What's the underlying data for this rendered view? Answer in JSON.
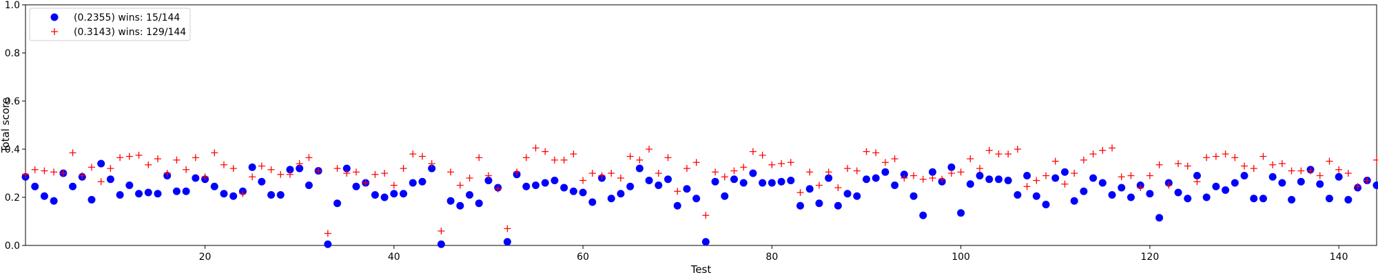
{
  "chart_data": {
    "type": "scatter",
    "title": "",
    "xlabel": "Test",
    "ylabel": "Total score",
    "xlim": [
      1,
      144
    ],
    "ylim": [
      0,
      1
    ],
    "x_ticks": [
      20,
      40,
      60,
      80,
      100,
      120,
      140
    ],
    "y_ticks": [
      0.0,
      0.2,
      0.4,
      0.6,
      0.8,
      1.0
    ],
    "x_tick_labels": [
      "20",
      "40",
      "60",
      "80",
      "100",
      "120",
      "140"
    ],
    "y_tick_labels": [
      "0.0",
      "0.2",
      "0.4",
      "0.6",
      "0.8",
      "1.0"
    ],
    "grid": false,
    "legend_position": "top-left",
    "series": [
      {
        "name": "(0.2355) wins: 15/144",
        "marker": "circle",
        "color": "#0000ff",
        "x": [
          1,
          2,
          3,
          4,
          5,
          6,
          7,
          8,
          9,
          10,
          11,
          12,
          13,
          14,
          15,
          16,
          17,
          18,
          19,
          20,
          21,
          22,
          23,
          24,
          25,
          26,
          27,
          28,
          29,
          30,
          31,
          32,
          33,
          34,
          35,
          36,
          37,
          38,
          39,
          40,
          41,
          42,
          43,
          44,
          45,
          46,
          47,
          48,
          49,
          50,
          51,
          52,
          53,
          54,
          55,
          56,
          57,
          58,
          59,
          60,
          61,
          62,
          63,
          64,
          65,
          66,
          67,
          68,
          69,
          70,
          71,
          72,
          73,
          74,
          75,
          76,
          77,
          78,
          79,
          80,
          81,
          82,
          83,
          84,
          85,
          86,
          87,
          88,
          89,
          90,
          91,
          92,
          93,
          94,
          95,
          96,
          97,
          98,
          99,
          100,
          101,
          102,
          103,
          104,
          105,
          106,
          107,
          108,
          109,
          110,
          111,
          112,
          113,
          114,
          115,
          116,
          117,
          118,
          119,
          120,
          121,
          122,
          123,
          124,
          125,
          126,
          127,
          128,
          129,
          130,
          131,
          132,
          133,
          134,
          135,
          136,
          137,
          138,
          139,
          140,
          141,
          142,
          143,
          144
        ],
        "y": [
          0.285,
          0.245,
          0.205,
          0.185,
          0.3,
          0.245,
          0.285,
          0.19,
          0.34,
          0.275,
          0.21,
          0.25,
          0.215,
          0.22,
          0.215,
          0.29,
          0.225,
          0.225,
          0.28,
          0.275,
          0.245,
          0.215,
          0.205,
          0.225,
          0.325,
          0.265,
          0.21,
          0.21,
          0.315,
          0.32,
          0.25,
          0.31,
          0.005,
          0.175,
          0.32,
          0.245,
          0.26,
          0.21,
          0.2,
          0.215,
          0.215,
          0.26,
          0.265,
          0.32,
          0.005,
          0.185,
          0.165,
          0.21,
          0.175,
          0.27,
          0.24,
          0.015,
          0.295,
          0.245,
          0.25,
          0.26,
          0.27,
          0.24,
          0.225,
          0.22,
          0.18,
          0.28,
          0.195,
          0.215,
          0.245,
          0.32,
          0.27,
          0.25,
          0.275,
          0.165,
          0.235,
          0.195,
          0.015,
          0.265,
          0.205,
          0.275,
          0.26,
          0.3,
          0.26,
          0.26,
          0.265,
          0.27,
          0.165,
          0.235,
          0.175,
          0.28,
          0.165,
          0.215,
          0.205,
          0.275,
          0.28,
          0.305,
          0.25,
          0.295,
          0.205,
          0.125,
          0.305,
          0.265,
          0.325,
          0.135,
          0.255,
          0.29,
          0.275,
          0.275,
          0.27,
          0.21,
          0.29,
          0.205,
          0.17,
          0.28,
          0.305,
          0.185,
          0.225,
          0.28,
          0.26,
          0.21,
          0.24,
          0.2,
          0.25,
          0.215,
          0.115,
          0.26,
          0.22,
          0.195,
          0.29,
          0.2,
          0.245,
          0.23,
          0.26,
          0.29,
          0.195,
          0.195,
          0.285,
          0.26,
          0.19,
          0.265,
          0.315,
          0.255,
          0.195,
          0.285,
          0.19,
          0.24,
          0.27,
          0.25
        ]
      },
      {
        "name": "(0.3143) wins: 129/144",
        "marker": "plus",
        "color": "#ff0000",
        "x": [
          1,
          2,
          3,
          4,
          5,
          6,
          7,
          8,
          9,
          10,
          11,
          12,
          13,
          14,
          15,
          16,
          17,
          18,
          19,
          20,
          21,
          22,
          23,
          24,
          25,
          26,
          27,
          28,
          29,
          30,
          31,
          32,
          33,
          34,
          35,
          36,
          37,
          38,
          39,
          40,
          41,
          42,
          43,
          44,
          45,
          46,
          47,
          48,
          49,
          50,
          51,
          52,
          53,
          54,
          55,
          56,
          57,
          58,
          59,
          60,
          61,
          62,
          63,
          64,
          65,
          66,
          67,
          68,
          69,
          70,
          71,
          72,
          73,
          74,
          75,
          76,
          77,
          78,
          79,
          80,
          81,
          82,
          83,
          84,
          85,
          86,
          87,
          88,
          89,
          90,
          91,
          92,
          93,
          94,
          95,
          96,
          97,
          98,
          99,
          100,
          101,
          102,
          103,
          104,
          105,
          106,
          107,
          108,
          109,
          110,
          111,
          112,
          113,
          114,
          115,
          116,
          117,
          118,
          119,
          120,
          121,
          122,
          123,
          124,
          125,
          126,
          127,
          128,
          129,
          130,
          131,
          132,
          133,
          134,
          135,
          136,
          137,
          138,
          139,
          140,
          141,
          142,
          143,
          144
        ],
        "y": [
          0.295,
          0.315,
          0.31,
          0.305,
          0.3,
          0.385,
          0.29,
          0.325,
          0.265,
          0.32,
          0.365,
          0.37,
          0.375,
          0.335,
          0.36,
          0.3,
          0.355,
          0.315,
          0.365,
          0.285,
          0.385,
          0.335,
          0.32,
          0.215,
          0.285,
          0.33,
          0.315,
          0.295,
          0.295,
          0.34,
          0.365,
          0.31,
          0.05,
          0.32,
          0.3,
          0.305,
          0.26,
          0.295,
          0.3,
          0.25,
          0.32,
          0.38,
          0.37,
          0.34,
          0.06,
          0.305,
          0.25,
          0.28,
          0.365,
          0.29,
          0.235,
          0.07,
          0.305,
          0.365,
          0.405,
          0.39,
          0.355,
          0.355,
          0.38,
          0.27,
          0.3,
          0.29,
          0.3,
          0.28,
          0.37,
          0.355,
          0.4,
          0.3,
          0.365,
          0.225,
          0.32,
          0.345,
          0.125,
          0.305,
          0.285,
          0.31,
          0.325,
          0.39,
          0.375,
          0.335,
          0.34,
          0.345,
          0.22,
          0.305,
          0.25,
          0.305,
          0.24,
          0.32,
          0.31,
          0.39,
          0.385,
          0.345,
          0.36,
          0.28,
          0.29,
          0.275,
          0.28,
          0.275,
          0.3,
          0.305,
          0.36,
          0.32,
          0.395,
          0.38,
          0.38,
          0.4,
          0.245,
          0.27,
          0.29,
          0.35,
          0.255,
          0.3,
          0.355,
          0.38,
          0.395,
          0.405,
          0.285,
          0.29,
          0.24,
          0.29,
          0.335,
          0.25,
          0.34,
          0.33,
          0.265,
          0.365,
          0.37,
          0.38,
          0.365,
          0.33,
          0.32,
          0.37,
          0.335,
          0.34,
          0.31,
          0.31,
          0.31,
          0.29,
          0.35,
          0.315,
          0.3,
          0.245,
          0.27,
          0.355
        ]
      }
    ]
  }
}
